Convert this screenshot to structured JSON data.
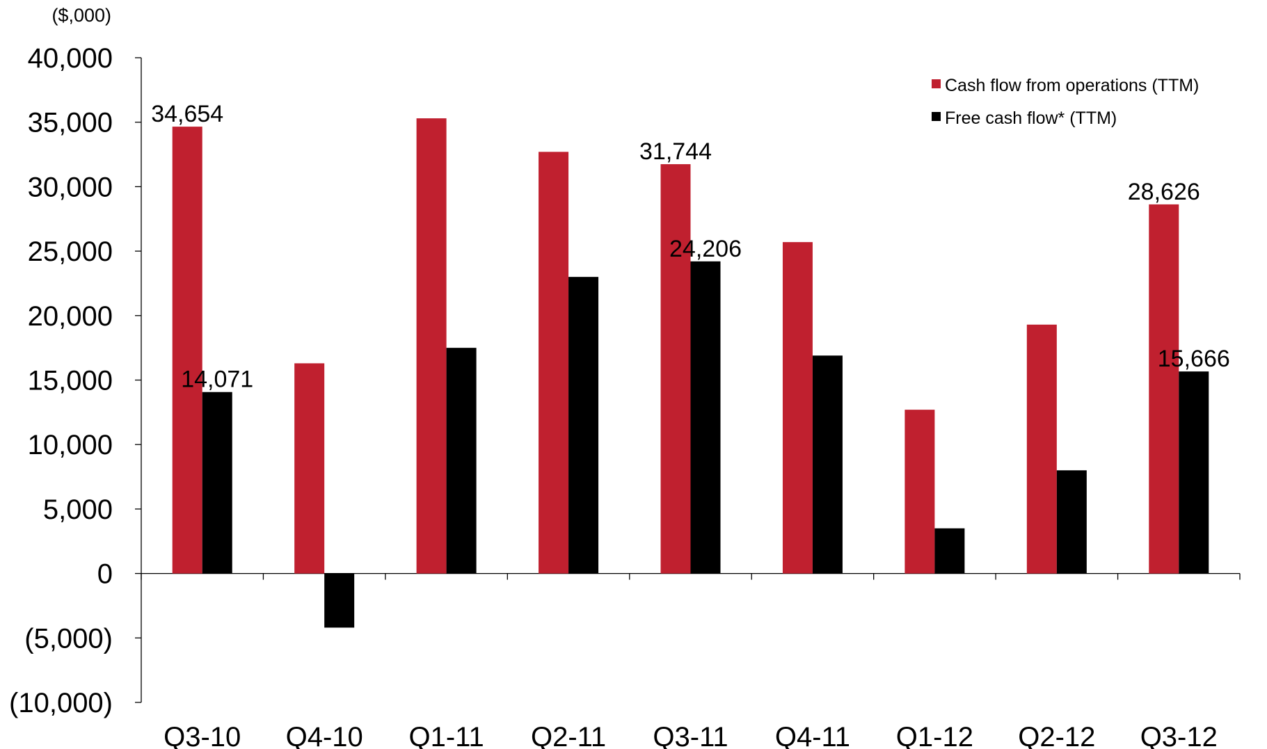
{
  "chart_data": {
    "type": "bar",
    "unit_label": "($,000)",
    "categories": [
      "Q3-10",
      "Q4-10",
      "Q1-11",
      "Q2-11",
      "Q3-11",
      "Q4-11",
      "Q1-12",
      "Q2-12",
      "Q3-12"
    ],
    "series": [
      {
        "name": "Cash flow from operations (TTM)",
        "color": "#c0202f",
        "values": [
          34654,
          16300,
          35300,
          32700,
          31744,
          25700,
          12700,
          19300,
          28626
        ],
        "data_labels": [
          "34,654",
          "",
          "",
          "",
          "31,744",
          "",
          "",
          "",
          "28,626"
        ]
      },
      {
        "name": "Free cash flow* (TTM)",
        "color": "#000000",
        "values": [
          14071,
          -4200,
          17500,
          23000,
          24206,
          16900,
          3500,
          8000,
          15666
        ],
        "data_labels": [
          "14,071",
          "",
          "",
          "",
          "24,206",
          "",
          "",
          "",
          "15,666"
        ]
      }
    ],
    "ylim": [
      -10000,
      40000
    ],
    "yticks": [
      40000,
      35000,
      30000,
      25000,
      20000,
      15000,
      10000,
      5000,
      0,
      -5000,
      -10000
    ],
    "ytick_labels": [
      "40,000",
      "35,000",
      "30,000",
      "25,000",
      "20,000",
      "15,000",
      "10,000",
      "5,000",
      "0",
      "(5,000)",
      "(10,000)"
    ],
    "grid": false,
    "legend_position": "top-right"
  }
}
